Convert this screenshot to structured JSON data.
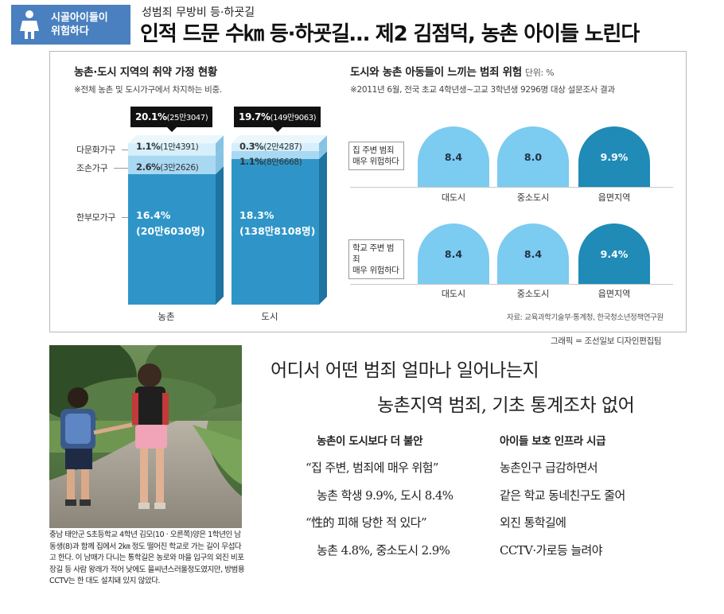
{
  "header": {
    "badge_line1": "시골아이들이",
    "badge_line2": "위험하다",
    "kicker": "성범죄 무방비 등·하굣길",
    "headline": "인적 드문 수㎞ 등·하굣길… 제2 김점덕, 농촌 아이들 노린다"
  },
  "colors": {
    "badge": "#4a80bf",
    "bar_main": "#2f95c8",
    "bar_light": "#a9d8f2",
    "bar_lightest": "#d6effa",
    "dome_light": "#7ccbf0",
    "dome_dark": "#1f8bb6"
  },
  "left_chart": {
    "title": "농촌·도시 지역의 취약 가정 현황",
    "note": "※전체 농촌 및 도시가구에서 차지하는 비중.",
    "row_labels": [
      "다문화가구",
      "조손가구",
      "한부모가구"
    ],
    "chart_data": {
      "type": "bar",
      "stacked": true,
      "categories": [
        "농촌",
        "도시"
      ],
      "series": [
        {
          "name": "한부모가구",
          "values": [
            16.4,
            18.3
          ],
          "labels": [
            "16.4%",
            "18.3%"
          ],
          "counts": [
            "(20만6030명)",
            "(138만8108명)"
          ]
        },
        {
          "name": "조손가구",
          "values": [
            2.6,
            1.1
          ],
          "labels": [
            "2.6%",
            "1.1%"
          ],
          "counts": [
            "(3만2626)",
            "(8만6668)"
          ]
        },
        {
          "name": "다문화가구",
          "values": [
            1.1,
            0.3
          ],
          "labels": [
            "1.1%",
            "0.3%"
          ],
          "counts": [
            "(1만4391)",
            "(2만4287)"
          ]
        }
      ],
      "totals": [
        {
          "pct": "20.1%",
          "count": "(25만3047)"
        },
        {
          "pct": "19.7%",
          "count": "(149만9063)"
        }
      ]
    }
  },
  "right_chart": {
    "title": "도시와 농촌 아동들이 느끼는 범죄 위험",
    "unit": "단위: %",
    "note": "※2011년 6월, 전국 초교 4학년생~고교 3학년생 9296명 대상 설문조사 결과",
    "chart_data": {
      "type": "bar",
      "categories": [
        "대도시",
        "중소도시",
        "읍면지역"
      ],
      "series": [
        {
          "name": "집 주변 범죄 매우 위험하다",
          "name_line1": "집 주변 범죄",
          "name_line2": "매우 위험하다",
          "values": [
            8.4,
            8.0,
            9.9
          ],
          "labels": [
            "8.4",
            "8.0",
            "9.9%"
          ]
        },
        {
          "name": "학교 주변 범죄 매우 위험하다",
          "name_line1": "학교 주변 범죄",
          "name_line2": "매우 위험하다",
          "values": [
            8.4,
            8.4,
            9.4
          ],
          "labels": [
            "8.4",
            "8.4",
            "9.4%"
          ]
        }
      ]
    },
    "source": "자료: 교육과학기술부·통계청, 한국청소년정책연구원"
  },
  "credit": "그래픽 = 조선일보 디자인편집팀",
  "photo": {
    "caption": "충남 태안군 S초등학교 4학년 김모(10 · 오른쪽)양은 1학년인 남동생(8)과 함께 집에서 2㎞ 정도 떨어진 학교로 가는 길이 무섭다고 한다. 이 남매가 다니는 통학길은 농로와 마을 입구의 외진 비포장길 등 사람 왕래가 적어 낮에도 을씨년스러울정도였지만, 방범용 CCTV는 한 대도 설치돼 있지 않았다."
  },
  "article": {
    "sub1": "어디서 어떤 범죄 얼마나 일어나는지",
    "sub2": "농촌지역 범죄, 기초 통계조차 없어",
    "col1": {
      "head": "농촌이 도시보다 더 불안",
      "lines": [
        "“집 주변, 범죄에 매우 위험”",
        "농촌 학생 9.9%, 도시 8.4%",
        "“性的 피해 당한 적 있다”",
        "농촌 4.8%, 중소도시 2.9%"
      ]
    },
    "col2": {
      "head": "아이들 보호 인프라 시급",
      "lines": [
        "농촌인구 급감하면서",
        "같은 학교 동네친구도 줄어",
        "외진 통학길에",
        "CCTV·가로등 늘려야"
      ]
    }
  }
}
